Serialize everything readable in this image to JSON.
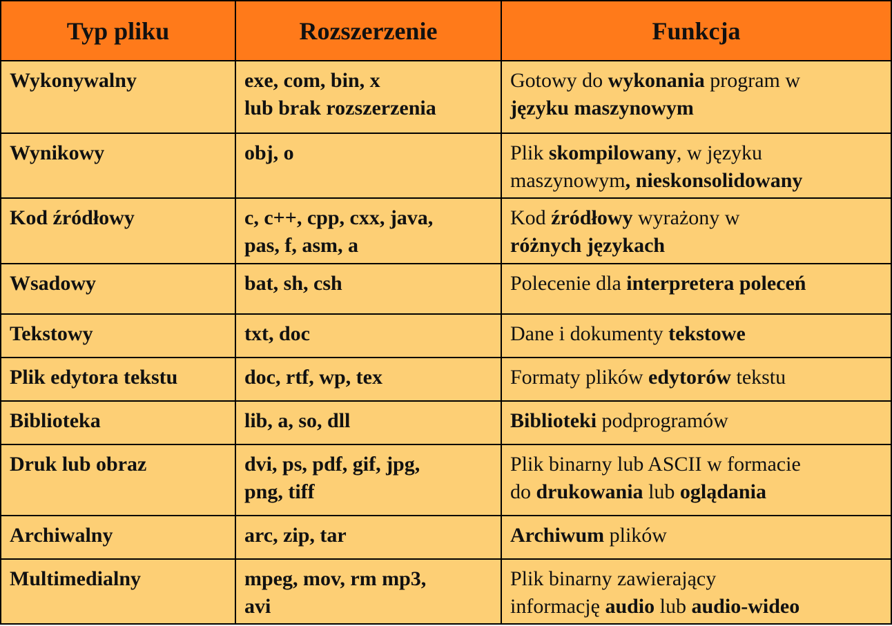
{
  "headers": [
    "Typ pliku",
    "Rozszerzenie",
    "Funkcja"
  ],
  "rows": [
    {
      "type": "Wykonywalny",
      "ext1": "exe, com, bin, x",
      "ext2": "lub brak rozszerzenia",
      "f": [
        "Gotowy do ",
        "wykonania",
        " program w",
        "",
        "języku maszynowym",
        ""
      ]
    },
    {
      "type": "Wynikowy",
      "ext1": "obj, o",
      "ext2": "",
      "f": [
        "Plik ",
        "skompilowany",
        ", w języku",
        "maszynowym",
        ", nieskonsolidowany",
        ""
      ]
    },
    {
      "type": "Kod źródłowy",
      "ext1": "c, c++, cpp, cxx, java,",
      "ext2": "pas, f, asm, a",
      "f": [
        "Kod ",
        "źródłowy",
        " wyrażony w",
        "",
        "różnych językach",
        ""
      ]
    },
    {
      "type": "Wsadowy",
      "ext1": "bat, sh, csh",
      "ext2": "",
      "f": [
        "Polecenie dla ",
        "interpretera poleceń",
        "",
        "",
        "",
        ""
      ]
    },
    {
      "type": "Tekstowy",
      "ext1": "txt, doc",
      "ext2": "",
      "f": [
        "Dane i dokumenty ",
        "tekstowe",
        "",
        "",
        "",
        ""
      ]
    },
    {
      "type": "Plik edytora tekstu",
      "ext1": "doc, rtf, wp, tex",
      "ext2": "",
      "f": [
        "Formaty plików ",
        "edytorów",
        " tekstu",
        "",
        "",
        ""
      ]
    },
    {
      "type": "Biblioteka",
      "ext1": "lib, a, so, dll",
      "ext2": "",
      "f": [
        "",
        "Biblioteki",
        " podprogramów",
        "",
        "",
        ""
      ]
    },
    {
      "type": "Druk lub obraz",
      "ext1": "dvi, ps, pdf, gif, jpg,",
      "ext2": "png, tiff",
      "f": [
        "Plik binarny lub ASCII w formacie",
        "",
        "",
        "do ",
        "drukowania",
        " lub oglądania"
      ]
    },
    {
      "type": "Archiwalny",
      "ext1": "arc, zip, tar",
      "ext2": "",
      "f": [
        "",
        "Archiwum",
        " plików",
        "",
        "",
        ""
      ]
    },
    {
      "type": "Multimedialny",
      "ext1": "mpeg, mov, rm mp3,",
      "ext2": "avi",
      "f": [
        "Plik binarny zawierający",
        "",
        "",
        "informację ",
        "audio",
        " lub audio-wideo"
      ]
    }
  ]
}
